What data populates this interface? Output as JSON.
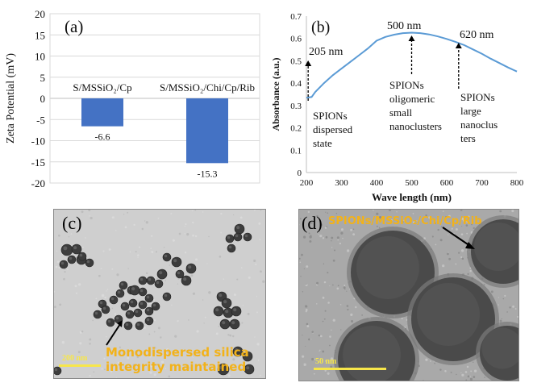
{
  "chart_data": [
    {
      "type": "bar",
      "panel_label": "(a)",
      "categories": [
        "S/MSSiO₂/Cp",
        "S/MSSiO₂/Chi/Cp/Rib"
      ],
      "values": [
        -6.6,
        -15.3
      ],
      "value_labels": [
        "-6.6",
        "-15.3"
      ],
      "ylabel": "Zeta Potential (mV)",
      "ylim": [
        -20,
        20
      ],
      "yticks": [
        20,
        15,
        10,
        5,
        0,
        -5,
        -10,
        -15,
        -20
      ],
      "grid": true,
      "bar_color": "#4472c4"
    },
    {
      "type": "line",
      "panel_label": "(b)",
      "xlabel": "Wave length (nm)",
      "ylabel": "Absorbance (a.u.)",
      "xlim": [
        200,
        800
      ],
      "ylim": [
        0,
        0.7
      ],
      "xticks": [
        200,
        300,
        400,
        500,
        600,
        700,
        800
      ],
      "yticks": [
        0,
        0.1,
        0.2,
        0.3,
        0.4,
        0.5,
        0.6,
        0.7
      ],
      "ytick_labels": [
        "0",
        "0.1",
        "0.2",
        "0.3",
        "0.4",
        "0.5",
        "0.6",
        "0.7"
      ],
      "line_color": "#5b9bd5",
      "series": [
        {
          "x": [
            200,
            215,
            225,
            250,
            275,
            300,
            325,
            350,
            375,
            400,
            425,
            450,
            475,
            500,
            525,
            550,
            575,
            600,
            625,
            650,
            675,
            700,
            725,
            750,
            775,
            800
          ],
          "y": [
            0.335,
            0.338,
            0.36,
            0.4,
            0.435,
            0.465,
            0.495,
            0.525,
            0.555,
            0.59,
            0.607,
            0.617,
            0.624,
            0.626,
            0.624,
            0.618,
            0.609,
            0.598,
            0.585,
            0.57,
            0.551,
            0.532,
            0.51,
            0.49,
            0.47,
            0.452
          ]
        }
      ],
      "annotations": [
        {
          "text": "205 nm",
          "x": 205
        },
        {
          "text": "500 nm",
          "x": 500
        },
        {
          "text": "620 nm",
          "x": 620
        },
        {
          "text": [
            "SPIONs",
            "dispersed",
            "state"
          ]
        },
        {
          "text": [
            "SPIONs",
            "oligomeric",
            "small",
            "nanoclusters"
          ]
        },
        {
          "text": [
            "SPIONs",
            "large",
            "nanoclus",
            "ters"
          ]
        }
      ]
    }
  ],
  "micrographs": {
    "c": {
      "label": "(c)",
      "note_lines": [
        "Monodispersed silica",
        "integrity maintained"
      ],
      "scale": "200 nm"
    },
    "d": {
      "label": "(d)",
      "caption": "SPIONs/MSSiO₂/Chi/Cp/Rib",
      "scale": "50 nm"
    }
  }
}
